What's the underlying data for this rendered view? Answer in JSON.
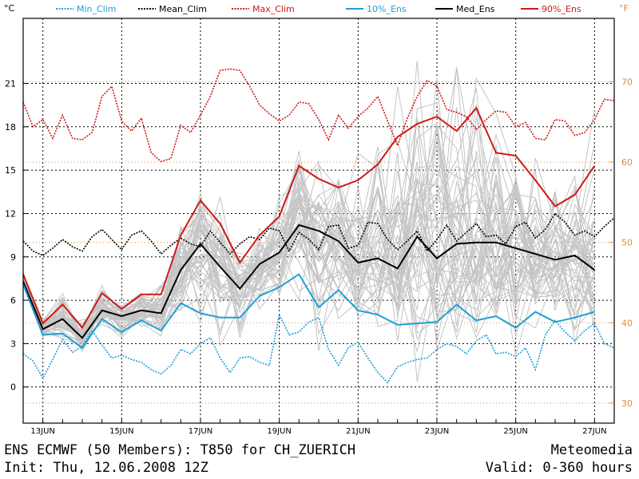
{
  "chart_data": {
    "type": "line",
    "title": "ENS ECMWF (50 Members): T850 for CH_ZUERICH",
    "init_text": "Init: Thu, 12.06.2008 12Z",
    "brand": "Meteomedia",
    "valid_text": "Valid: 0-360 hours",
    "ylabel_left": "°C",
    "ylabel_right": "°F",
    "ylim": [
      -2.5,
      25.5
    ],
    "x_range": [
      0,
      30
    ],
    "yticks_left": [
      0,
      3,
      6,
      9,
      12,
      15,
      18,
      21
    ],
    "yticks_right": [
      30,
      40,
      50,
      60,
      70
    ],
    "xtick_labels": [
      "13JUN",
      "15JUN",
      "17JUN",
      "19JUN",
      "21JUN",
      "23JUN",
      "25JUN",
      "27JUN"
    ],
    "xtick_positions": [
      1,
      5,
      9,
      13,
      17,
      21,
      25,
      29
    ],
    "legend": [
      "Min_Clim",
      "Mean_Clim",
      "Max_Clim",
      "10%_Ens",
      "Med_Ens",
      "90%_Ens"
    ],
    "colors": {
      "min_clim": "#1e9fd6",
      "mean_clim": "#000000",
      "max_clim": "#d01818",
      "p10": "#1e9fd6",
      "median": "#000000",
      "p90": "#d01818",
      "members": "#c4c4c4",
      "fahrenheit": "#e08a3c"
    },
    "ens_x": [
      0,
      1,
      2,
      3,
      4,
      5,
      6,
      7,
      8,
      9,
      10,
      11,
      12,
      13,
      14,
      15,
      16,
      17,
      18,
      19,
      20,
      21,
      22,
      23,
      24,
      25,
      26,
      27,
      28,
      29
    ],
    "series": [
      {
        "name": "90%_Ens",
        "values": [
          7.8,
          4.4,
          5.7,
          4.1,
          6.5,
          5.4,
          6.4,
          6.4,
          10.5,
          12.9,
          11.3,
          8.6,
          10.5,
          11.8,
          15.3,
          14.4,
          13.8,
          14.3,
          15.4,
          17.3,
          18.2,
          18.7,
          17.7,
          19.3,
          16.2,
          16.0,
          14.3,
          12.5,
          13.3,
          15.3
        ]
      },
      {
        "name": "Med_Ens",
        "values": [
          7.3,
          4.0,
          4.7,
          3.4,
          5.3,
          4.9,
          5.3,
          5.1,
          8.1,
          9.9,
          8.3,
          6.8,
          8.5,
          9.3,
          11.2,
          10.8,
          10.1,
          8.6,
          8.9,
          8.2,
          10.4,
          8.9,
          9.9,
          10.0,
          10.0,
          9.6,
          9.2,
          8.8,
          9.1,
          8.1
        ]
      },
      {
        "name": "10%_Ens",
        "values": [
          7.1,
          3.6,
          3.7,
          2.7,
          4.7,
          3.8,
          4.6,
          3.9,
          5.8,
          5.1,
          4.8,
          4.8,
          6.3,
          6.9,
          7.8,
          5.5,
          6.7,
          5.3,
          5.0,
          4.3,
          4.4,
          4.5,
          5.7,
          4.6,
          4.9,
          4.1,
          5.2,
          4.5,
          4.8,
          5.2
        ]
      }
    ],
    "clim_x": [
      0,
      0.5,
      1,
      1.5,
      2,
      2.5,
      3,
      3.5,
      4,
      4.5,
      5,
      5.5,
      6,
      6.5,
      7,
      7.5,
      8,
      8.5,
      9,
      9.5,
      10,
      10.5,
      11,
      11.5,
      12,
      12.5,
      13,
      13.5,
      14,
      14.5,
      15,
      15.5,
      16,
      16.5,
      17,
      17.5,
      18,
      18.5,
      19,
      19.5,
      20,
      20.5,
      21,
      21.5,
      22,
      22.5,
      23,
      23.5,
      24,
      24.5,
      25,
      25.5,
      26,
      26.5,
      27,
      27.5,
      28,
      28.5,
      29,
      29.5,
      30
    ],
    "clim_series": [
      {
        "name": "Max_Clim",
        "values": [
          19.7,
          18.0,
          18.5,
          17.2,
          18.8,
          17.2,
          17.1,
          17.6,
          20.1,
          20.8,
          18.4,
          17.7,
          18.6,
          16.2,
          15.6,
          15.8,
          18.1,
          17.6,
          18.8,
          20.1,
          21.9,
          22.0,
          21.9,
          20.8,
          19.5,
          18.9,
          18.4,
          18.8,
          19.7,
          19.6,
          18.5,
          17.1,
          18.8,
          17.9,
          18.7,
          19.3,
          20.1,
          18.4,
          16.7,
          18.6,
          20.1,
          21.2,
          20.8,
          19.2,
          19.0,
          18.7,
          17.8,
          18.5,
          19.1,
          19.0,
          18.0,
          18.3,
          17.2,
          17.1,
          18.5,
          18.4,
          17.4,
          17.6,
          18.5,
          19.9,
          19.8
        ]
      },
      {
        "name": "Mean_Clim",
        "values": [
          10.1,
          9.4,
          9.1,
          9.6,
          10.2,
          9.7,
          9.4,
          10.4,
          10.9,
          10.2,
          9.5,
          10.5,
          10.8,
          10.1,
          9.2,
          9.8,
          10.3,
          9.9,
          9.7,
          10.8,
          10.0,
          9.2,
          9.9,
          10.4,
          10.2,
          11.0,
          10.8,
          9.4,
          10.7,
          10.2,
          9.5,
          11.1,
          11.2,
          9.6,
          9.8,
          11.4,
          11.3,
          10.2,
          9.5,
          10.1,
          10.8,
          9.4,
          10.2,
          11.2,
          10.1,
          10.7,
          11.3,
          10.4,
          10.5,
          9.9,
          11.1,
          11.4,
          10.3,
          10.9,
          12.0,
          11.4,
          10.5,
          10.8,
          10.4,
          11.1,
          11.7
        ]
      },
      {
        "name": "Min_Clim",
        "values": [
          2.3,
          1.8,
          0.6,
          1.9,
          3.3,
          2.4,
          2.8,
          3.9,
          2.9,
          2.0,
          2.2,
          1.9,
          1.7,
          1.2,
          0.9,
          1.5,
          2.6,
          2.3,
          3.0,
          3.4,
          2.0,
          1.0,
          2.0,
          2.1,
          1.7,
          1.5,
          5.0,
          3.6,
          3.8,
          4.5,
          4.8,
          2.6,
          1.5,
          2.7,
          3.1,
          2.0,
          1.0,
          0.3,
          1.4,
          1.7,
          1.9,
          2.0,
          2.6,
          3.0,
          2.8,
          2.3,
          3.2,
          3.6,
          2.3,
          2.4,
          2.1,
          2.7,
          1.2,
          3.6,
          4.6,
          3.8,
          3.2,
          3.9,
          4.4,
          3.0,
          2.7
        ]
      }
    ]
  }
}
